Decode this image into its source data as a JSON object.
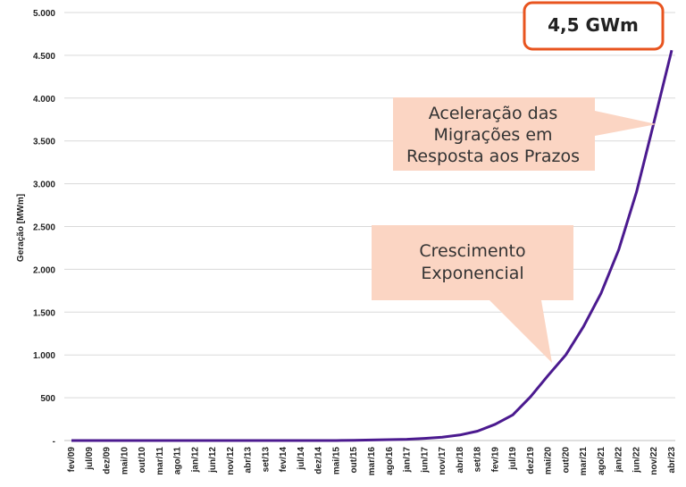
{
  "chart_data": {
    "type": "line",
    "ylabel": "Geração [MWm]",
    "ylim": [
      0,
      5000
    ],
    "y_ticks": [
      "-",
      "500",
      "1.000",
      "1.500",
      "2.000",
      "2.500",
      "3.000",
      "3.500",
      "4.000",
      "4.500",
      "5.000"
    ],
    "x_ticks": [
      "fev/09",
      "jul/09",
      "dez/09",
      "mai/10",
      "out/10",
      "mar/11",
      "ago/11",
      "jan/12",
      "jun/12",
      "nov/12",
      "abr/13",
      "set/13",
      "fev/14",
      "jul/14",
      "dez/14",
      "mai/15",
      "out/15",
      "mar/16",
      "ago/16",
      "jan/17",
      "jun/17",
      "nov/17",
      "abr/18",
      "set/18",
      "fev/19",
      "jul/19",
      "dez/19",
      "mai/20",
      "out/20",
      "mar/21",
      "ago/21",
      "jan/22",
      "jun/22",
      "nov/22",
      "abr/23"
    ],
    "grid": true,
    "series": [
      {
        "color": "#4b1a8f",
        "x": [
          "fev/09",
          "jul/09",
          "dez/09",
          "mai/10",
          "out/10",
          "mar/11",
          "ago/11",
          "jan/12",
          "jun/12",
          "nov/12",
          "abr/13",
          "set/13",
          "fev/14",
          "jul/14",
          "dez/14",
          "mai/15",
          "out/15",
          "mar/16",
          "ago/16",
          "jan/17",
          "jun/17",
          "nov/17",
          "abr/18",
          "set/18",
          "fev/19",
          "jul/19",
          "dez/19",
          "mai/20",
          "out/20",
          "mar/21",
          "ago/21",
          "jan/22",
          "jun/22",
          "nov/22",
          "abr/23"
        ],
        "values": [
          0,
          0,
          0,
          0,
          0,
          0,
          0,
          0,
          0,
          0,
          0,
          0,
          0,
          0,
          0,
          0,
          3,
          6,
          10,
          15,
          25,
          40,
          65,
          110,
          190,
          300,
          510,
          760,
          1000,
          1330,
          1720,
          2230,
          2900,
          3720,
          4560
        ]
      }
    ],
    "annotations": [
      {
        "text": [
          "Aceleração das",
          "Migrações em",
          "Resposta aos Prazos"
        ],
        "points_to": "nov/22"
      },
      {
        "text": [
          "Crescimento",
          "Exponencial"
        ],
        "points_to": "mai/20"
      }
    ],
    "badge": "4,5 GWm"
  },
  "colors": {
    "line": "#4b1a8f",
    "callout_fill": "#fbd5c3",
    "badge_border": "#e8541f",
    "grid": "#d9d9d9"
  }
}
